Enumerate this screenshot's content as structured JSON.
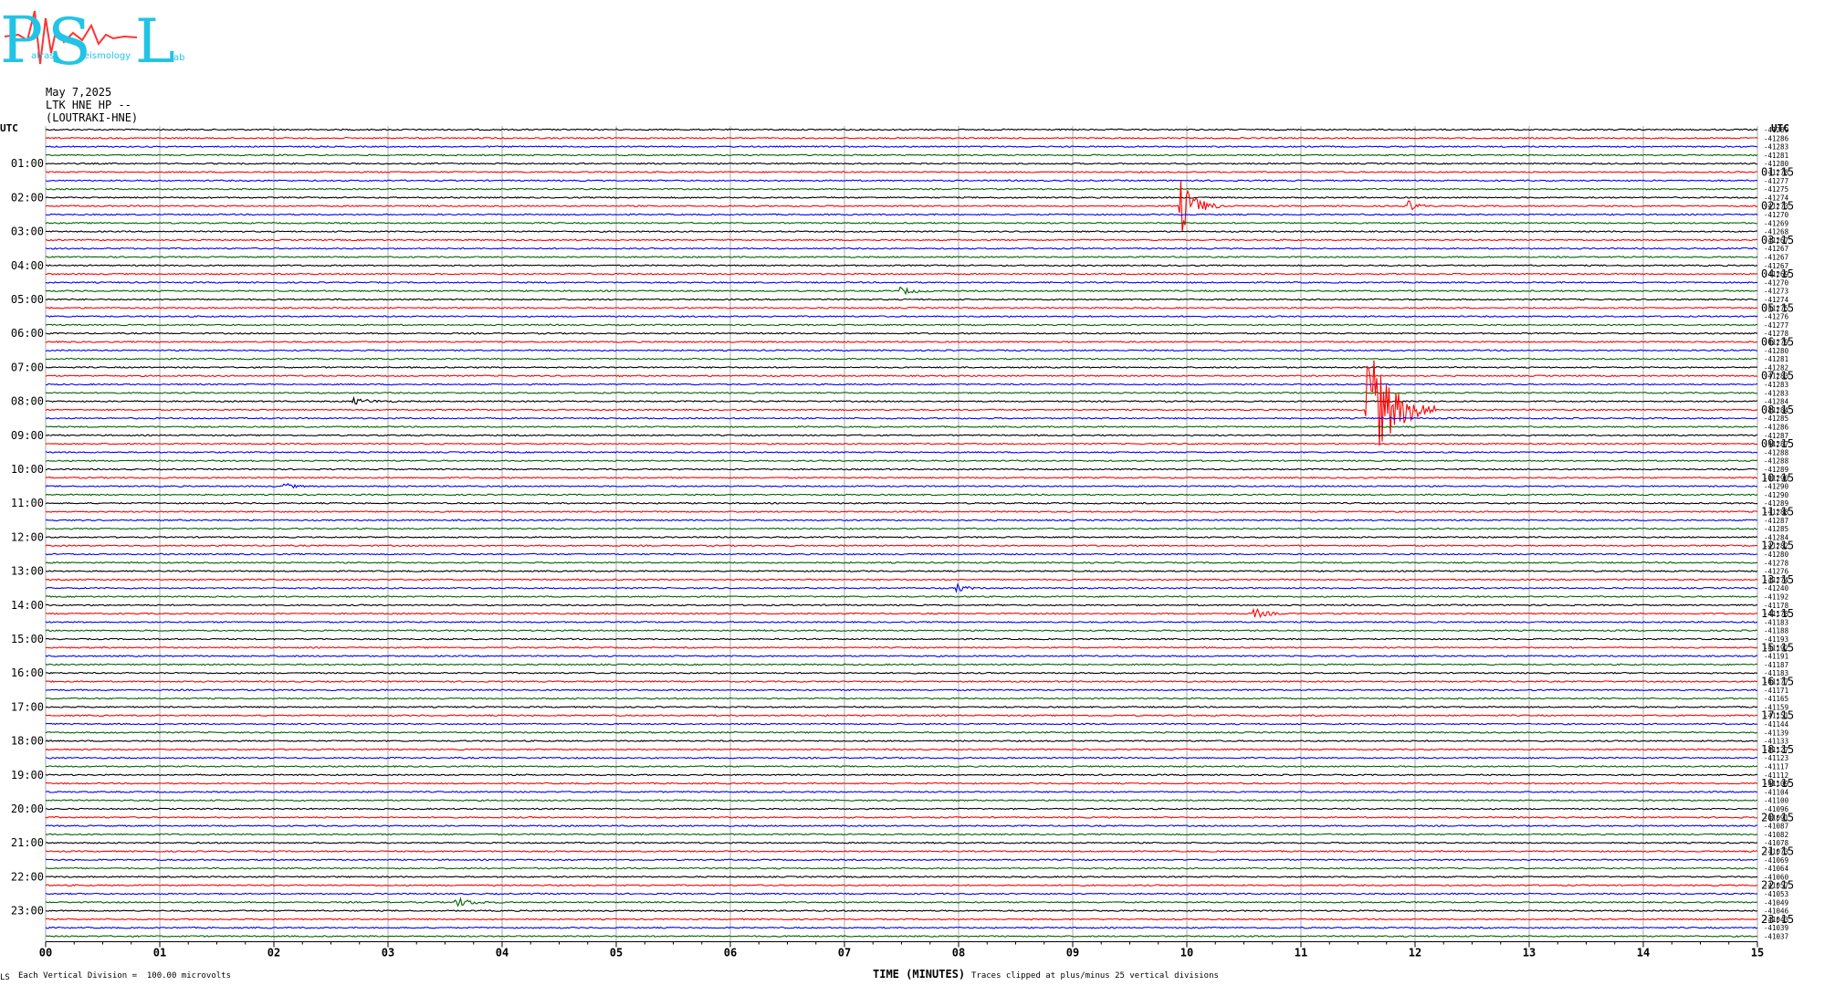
{
  "logo": {
    "letters": [
      "P",
      "S",
      "L"
    ],
    "small_words": [
      "atras",
      "eismology",
      "ab"
    ]
  },
  "header": {
    "date": "May 7,2025",
    "station": "LTK HNE HP --",
    "site": "(LOUTRAKI-HNE)"
  },
  "footer": {
    "corner_mark": "LS",
    "vertical_division": "Each Vertical Division =  100.00 microvolts",
    "xlabel": "TIME (MINUTES)",
    "clip_note": "Traces clipped at plus/minus 25 vertical divisions"
  },
  "chart_data": {
    "type": "line",
    "title": "",
    "left_axis_label": "UTC",
    "right_axis_label": "UTC",
    "xlabel": "TIME (MINUTES)",
    "xlim": [
      0,
      15
    ],
    "x_ticks": [
      "00",
      "01",
      "02",
      "03",
      "04",
      "05",
      "06",
      "07",
      "08",
      "09",
      "10",
      "11",
      "12",
      "13",
      "14",
      "15"
    ],
    "trace_colors": [
      "#000000",
      "#ff0000",
      "#0000ff",
      "#006400"
    ],
    "trace_count": 96,
    "trace_minutes": 15,
    "left_hour_labels": [
      "01:00",
      "02:00",
      "03:00",
      "04:00",
      "05:00",
      "06:00",
      "07:00",
      "08:00",
      "09:00",
      "10:00",
      "11:00",
      "12:00",
      "13:00",
      "14:00",
      "15:00",
      "16:00",
      "17:00",
      "18:00",
      "19:00",
      "20:00",
      "21:00",
      "22:00",
      "23:00"
    ],
    "right_hour_labels": [
      "01:15",
      "02:15",
      "03:15",
      "04:15",
      "05:15",
      "06:15",
      "07:15",
      "08:15",
      "09:15",
      "10:15",
      "11:15",
      "12:15",
      "13:15",
      "14:15",
      "15:15",
      "16:15",
      "17:15",
      "18:15",
      "19:15",
      "20:15",
      "21:15",
      "22:15",
      "23:15"
    ],
    "trace_offsets": [
      "-41289",
      "-41286",
      "-41283",
      "-41281",
      "-41280",
      "-41278",
      "-41277",
      "-41275",
      "-41274",
      "-41273",
      "-41270",
      "-41269",
      "-41268",
      "-41267",
      "-41267",
      "-41267",
      "-41267",
      "-41269",
      "-41270",
      "-41273",
      "-41274",
      "-41275",
      "-41276",
      "-41277",
      "-41278",
      "-41279",
      "-41280",
      "-41281",
      "-41282",
      "-41283",
      "-41283",
      "-41283",
      "-41284",
      "-41284",
      "-41285",
      "-41286",
      "-41287",
      "-41287",
      "-41288",
      "-41288",
      "-41289",
      "-41290",
      "-41290",
      "-41290",
      "-41289",
      "-41288",
      "-41287",
      "-41285",
      "-41284",
      "-41282",
      "-41280",
      "-41278",
      "-41276",
      "-41274",
      "-41240",
      "-41192",
      "-41178",
      "-41178",
      "-41183",
      "-41188",
      "-41193",
      "-41192",
      "-41191",
      "-41187",
      "-41183",
      "-41177",
      "-41171",
      "-41165",
      "-41159",
      "-41151",
      "-41144",
      "-41139",
      "-41133",
      "-41127",
      "-41123",
      "-41117",
      "-41112",
      "-41109",
      "-41104",
      "-41100",
      "-41096",
      "-41091",
      "-41087",
      "-41082",
      "-41078",
      "-41073",
      "-41069",
      "-41064",
      "-41060",
      "-41057",
      "-41053",
      "-41049",
      "-41046",
      "-41043",
      "-41039",
      "-41037"
    ],
    "events": [
      {
        "trace": 9,
        "minute": 9.95,
        "amplitude": 3.0,
        "duration_min": 0.35
      },
      {
        "trace": 9,
        "minute": 11.95,
        "amplitude": 0.6,
        "duration_min": 0.2
      },
      {
        "trace": 33,
        "minute": 11.58,
        "amplitude": 8.0,
        "duration_min": 0.6
      },
      {
        "trace": 57,
        "minute": 10.6,
        "amplitude": 0.5,
        "duration_min": 0.3
      },
      {
        "trace": 91,
        "minute": 3.6,
        "amplitude": 0.5,
        "duration_min": 0.4
      },
      {
        "trace": 19,
        "minute": 7.5,
        "amplitude": 0.4,
        "duration_min": 0.3
      },
      {
        "trace": 54,
        "minute": 8.0,
        "amplitude": 0.4,
        "duration_min": 0.2
      },
      {
        "trace": 32,
        "minute": 2.7,
        "amplitude": 0.35,
        "duration_min": 0.4
      },
      {
        "trace": 42,
        "minute": 2.1,
        "amplitude": 0.35,
        "duration_min": 0.2
      }
    ]
  }
}
